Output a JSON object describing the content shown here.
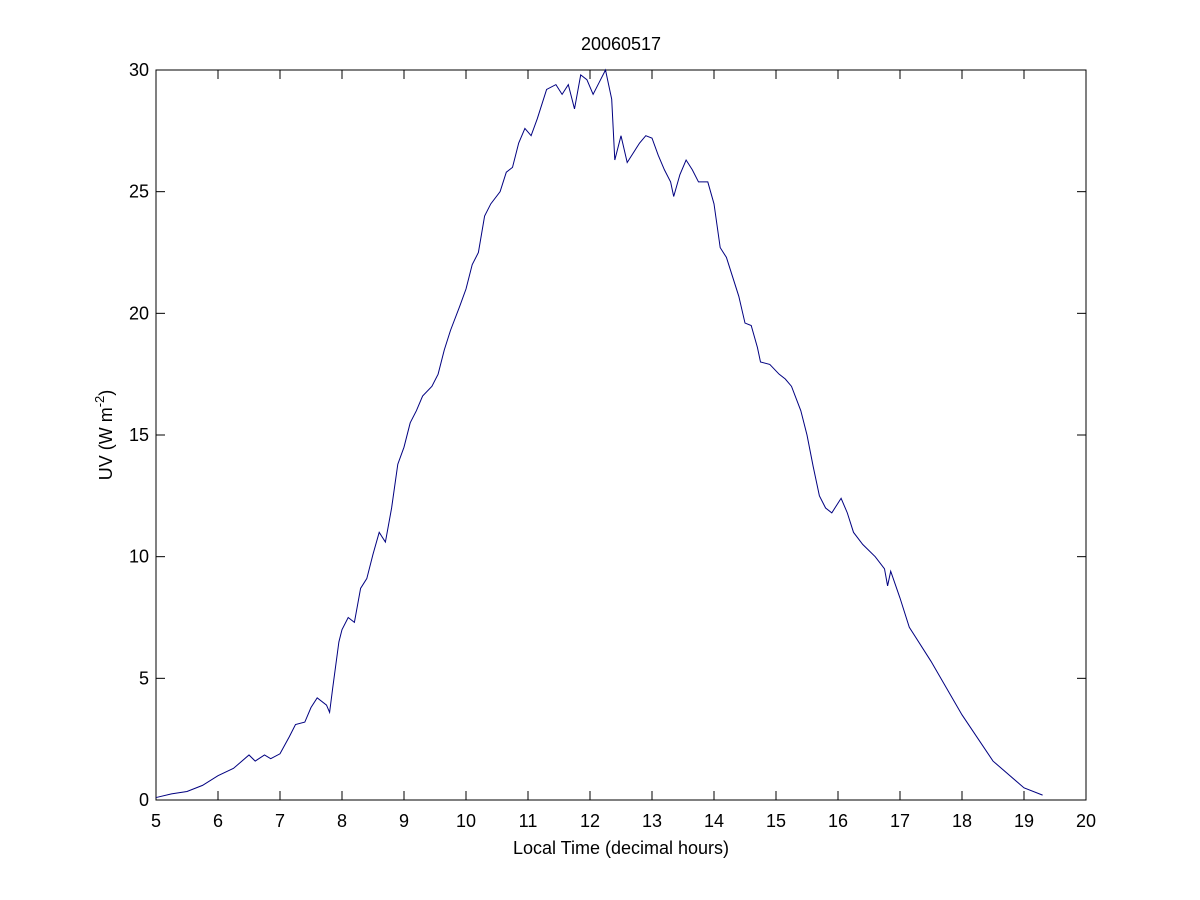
{
  "chart_data": {
    "type": "line",
    "title": "20060517",
    "xlabel": "Local Time (decimal hours)",
    "ylabel": {
      "text": "UV (W m",
      "sup": "-2",
      "close": ")"
    },
    "xlim": [
      5,
      20
    ],
    "xticks": [
      5,
      6,
      7,
      8,
      9,
      10,
      11,
      12,
      13,
      14,
      15,
      16,
      17,
      18,
      19,
      20
    ],
    "ylim": [
      0,
      30
    ],
    "yticks": [
      0,
      5,
      10,
      15,
      20,
      25,
      30
    ],
    "grid": false,
    "series": [
      {
        "color": "#000080",
        "x": [
          5.0,
          5.25,
          5.5,
          5.75,
          6.0,
          6.25,
          6.5,
          6.6,
          6.75,
          6.85,
          7.0,
          7.15,
          7.25,
          7.4,
          7.5,
          7.6,
          7.75,
          7.8,
          7.85,
          7.95,
          8.0,
          8.1,
          8.2,
          8.3,
          8.4,
          8.5,
          8.6,
          8.7,
          8.8,
          8.9,
          9.0,
          9.1,
          9.2,
          9.3,
          9.45,
          9.55,
          9.65,
          9.75,
          9.9,
          10.0,
          10.1,
          10.2,
          10.3,
          10.4,
          10.55,
          10.65,
          10.75,
          10.85,
          10.95,
          11.05,
          11.15,
          11.3,
          11.45,
          11.55,
          11.65,
          11.75,
          11.85,
          11.95,
          12.05,
          12.15,
          12.25,
          12.35,
          12.4,
          12.5,
          12.6,
          12.7,
          12.8,
          12.9,
          13.0,
          13.1,
          13.2,
          13.3,
          13.35,
          13.45,
          13.55,
          13.65,
          13.75,
          13.9,
          14.0,
          14.1,
          14.2,
          14.3,
          14.4,
          14.5,
          14.6,
          14.7,
          14.75,
          14.9,
          15.05,
          15.15,
          15.25,
          15.4,
          15.5,
          15.6,
          15.7,
          15.8,
          15.9,
          16.05,
          16.15,
          16.25,
          16.4,
          16.6,
          16.75,
          16.8,
          16.85,
          17.0,
          17.15,
          17.5,
          18.0,
          18.5,
          19.0,
          19.3
        ],
        "values": [
          0.1,
          0.25,
          0.35,
          0.6,
          1.0,
          1.3,
          1.85,
          1.6,
          1.85,
          1.7,
          1.9,
          2.6,
          3.1,
          3.2,
          3.8,
          4.2,
          3.9,
          3.6,
          4.6,
          6.5,
          7.0,
          7.5,
          7.3,
          8.7,
          9.1,
          10.1,
          11.0,
          10.6,
          12.0,
          13.8,
          14.5,
          15.5,
          16.0,
          16.6,
          17.0,
          17.5,
          18.5,
          19.3,
          20.3,
          21.0,
          22.0,
          22.5,
          24.0,
          24.5,
          25.0,
          25.8,
          26.0,
          27.0,
          27.6,
          27.3,
          28.0,
          29.2,
          29.4,
          29.0,
          29.4,
          28.4,
          29.8,
          29.6,
          29.0,
          29.5,
          30.0,
          28.8,
          26.3,
          27.3,
          26.2,
          26.6,
          27.0,
          27.3,
          27.2,
          26.5,
          25.9,
          25.4,
          24.8,
          25.7,
          26.3,
          25.9,
          25.4,
          25.4,
          24.5,
          22.7,
          22.3,
          21.5,
          20.7,
          19.6,
          19.5,
          18.6,
          18.0,
          17.9,
          17.5,
          17.3,
          17.0,
          16.0,
          15.0,
          13.7,
          12.5,
          12.0,
          11.8,
          12.4,
          11.8,
          11.0,
          10.5,
          10.0,
          9.5,
          8.8,
          9.4,
          8.3,
          7.1,
          5.7,
          3.5,
          1.6,
          0.5,
          0.2
        ]
      }
    ]
  }
}
